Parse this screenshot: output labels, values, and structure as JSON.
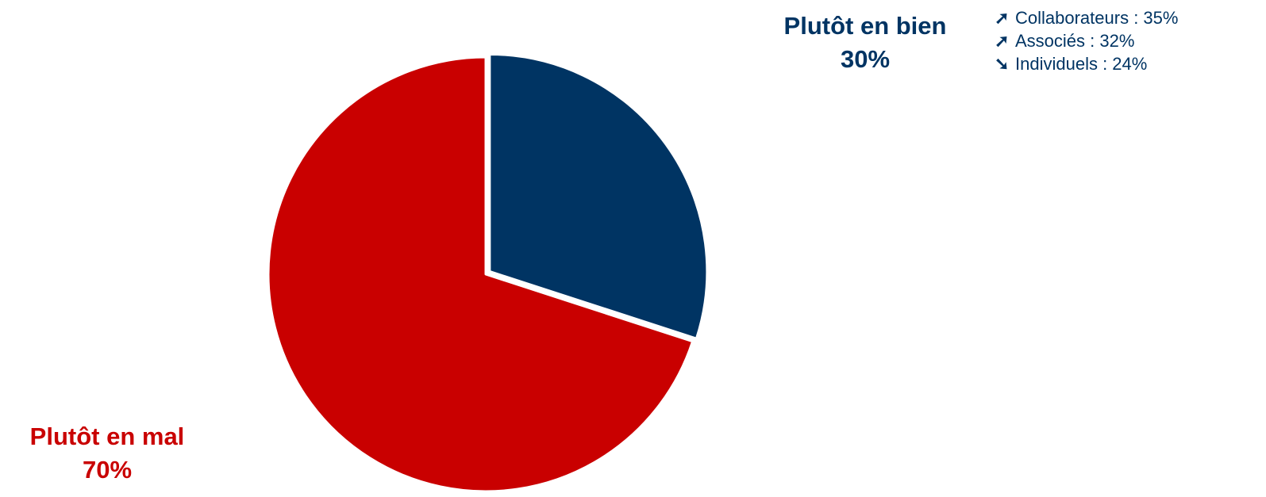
{
  "chart_data": {
    "type": "pie",
    "slices": [
      {
        "label": "Plutôt en bien",
        "value": 30,
        "value_label": "30%",
        "color": "#003463"
      },
      {
        "label": "Plutôt en mal",
        "value": 70,
        "value_label": "70%",
        "color": "#c90000"
      }
    ],
    "start_angle_deg": 0,
    "direction": "clockwise",
    "exploded_slice": "Plutôt en bien",
    "annotation": {
      "anchor": "Plutôt en bien",
      "items": [
        {
          "trend": "up",
          "icon": "arrow-up-right-icon",
          "text": "Collaborateurs : 35%"
        },
        {
          "trend": "up",
          "icon": "arrow-up-right-icon",
          "text": "Associés : 32%"
        },
        {
          "trend": "down",
          "icon": "arrow-down-right-icon",
          "text": "Individuels : 24%"
        }
      ]
    }
  }
}
